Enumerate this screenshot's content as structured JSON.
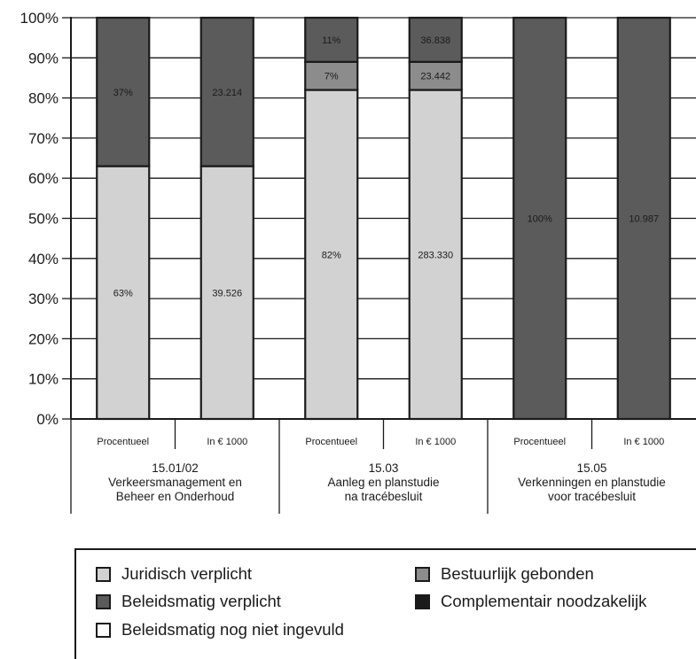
{
  "chart_data": {
    "type": "bar",
    "stacked": true,
    "y_ticks": [
      "0%",
      "10%",
      "20%",
      "30%",
      "40%",
      "50%",
      "60%",
      "70%",
      "80%",
      "90%",
      "100%"
    ],
    "ylim": [
      0,
      100
    ],
    "grid": true,
    "groups": [
      {
        "label_lines": [
          "15.01/02",
          "Verkeersmanagement en",
          "Beheer en Onderhoud"
        ],
        "bars": [
          "Procentueel",
          "In € 1000"
        ]
      },
      {
        "label_lines": [
          "15.03",
          "Aanleg en planstudie",
          "na tracébesluit"
        ],
        "bars": [
          "Procentueel",
          "In € 1000"
        ]
      },
      {
        "label_lines": [
          "15.05",
          "Verkenningen en planstudie",
          "voor tracébesluit"
        ],
        "bars": [
          "Procentueel",
          "In € 1000"
        ]
      }
    ],
    "bars": [
      {
        "sub": "Procentueel",
        "segments": [
          {
            "series": "Juridisch verplicht",
            "value": 63,
            "label": "63%"
          },
          {
            "series": "Beleidsmatig verplicht",
            "value": 37,
            "label": "37%"
          }
        ]
      },
      {
        "sub": "In € 1000",
        "segments": [
          {
            "series": "Juridisch verplicht",
            "value": 63,
            "label": "39.526"
          },
          {
            "series": "Beleidsmatig verplicht",
            "value": 37,
            "label": "23.214"
          }
        ]
      },
      {
        "sub": "Procentueel",
        "segments": [
          {
            "series": "Juridisch verplicht",
            "value": 82,
            "label": "82%"
          },
          {
            "series": "Bestuurlijk gebonden",
            "value": 7,
            "label": "7%"
          },
          {
            "series": "Beleidsmatig verplicht",
            "value": 11,
            "label": "11%"
          }
        ]
      },
      {
        "sub": "In € 1000",
        "segments": [
          {
            "series": "Juridisch verplicht",
            "value": 82,
            "label": "283.330"
          },
          {
            "series": "Bestuurlijk gebonden",
            "value": 7,
            "label": "23.442"
          },
          {
            "series": "Beleidsmatig verplicht",
            "value": 11,
            "label": "36.838"
          }
        ]
      },
      {
        "sub": "Procentueel",
        "segments": [
          {
            "series": "Beleidsmatig verplicht",
            "value": 100,
            "label": "100%"
          }
        ]
      },
      {
        "sub": "In € 1000",
        "segments": [
          {
            "series": "Beleidsmatig verplicht",
            "value": 100,
            "label": "10.987"
          }
        ]
      }
    ],
    "series": [
      {
        "name": "Juridisch verplicht",
        "color": "#d2d2d2"
      },
      {
        "name": "Bestuurlijk gebonden",
        "color": "#8c8c8c"
      },
      {
        "name": "Beleidsmatig verplicht",
        "color": "#5b5b5b"
      },
      {
        "name": "Complementair noodzakelijk",
        "color": "#1a1a1a"
      },
      {
        "name": "Beleidsmatig nog niet ingevuld",
        "color": "#ffffff"
      }
    ],
    "legend_position": "bottom"
  },
  "legend": {
    "items": [
      {
        "label": "Juridisch verplicht",
        "color": "#d2d2d2"
      },
      {
        "label": "Bestuurlijk gebonden",
        "color": "#8c8c8c"
      },
      {
        "label": "Beleidsmatig verplicht",
        "color": "#5b5b5b"
      },
      {
        "label": "Complementair noodzakelijk",
        "color": "#1a1a1a"
      },
      {
        "label": "Beleidsmatig nog niet ingevuld",
        "color": "#ffffff"
      }
    ]
  }
}
